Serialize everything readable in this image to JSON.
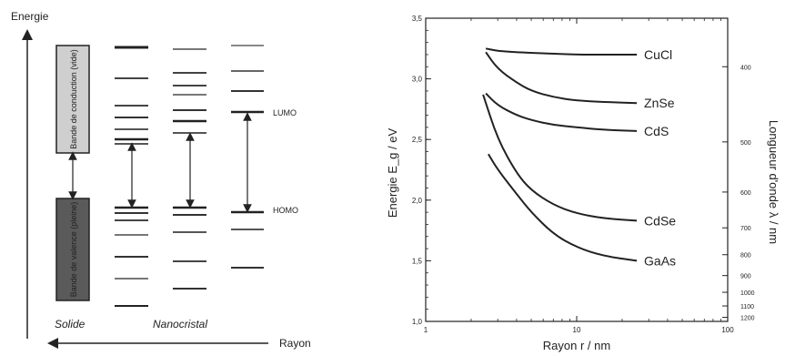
{
  "left_diagram": {
    "y_axis_label": "Energie",
    "x_axis_label": "Rayon",
    "conduction_band_label": "Bande de conduction (vide)",
    "valence_band_label": "Bande de valence (pleine)",
    "solid_label": "Solide",
    "nanocrystal_label": "Nanocristal",
    "lumo_label": "LUMO",
    "homo_label": "HOMO",
    "colors": {
      "conduction_band": "#cfcfcf",
      "valence_band": "#5a5a5a"
    }
  },
  "chart_data": {
    "type": "line",
    "xlabel": "Rayon r / nm",
    "ylabel": "Energie E_g / eV",
    "ylabel_right": "Longueur d'onde λ / nm",
    "x_scale": "log",
    "xlim": [
      1,
      100
    ],
    "ylim": [
      1.0,
      3.5
    ],
    "x_tick_labels": [
      "1",
      "10",
      "100"
    ],
    "y_tick_labels": [
      "1,0",
      "1,5",
      "2,0",
      "2,5",
      "3,0",
      "3,5"
    ],
    "right_tick_labels": [
      "400",
      "500",
      "600",
      "700",
      "800",
      "900",
      "1000",
      "1100",
      "1200"
    ],
    "series": [
      {
        "name": "CuCl",
        "x": [
          2.5,
          3,
          4,
          6,
          10,
          15,
          25
        ],
        "y": [
          3.25,
          3.23,
          3.22,
          3.21,
          3.2,
          3.2,
          3.2
        ]
      },
      {
        "name": "ZnSe",
        "x": [
          2.5,
          3,
          4,
          5,
          7,
          10,
          15,
          25
        ],
        "y": [
          3.22,
          3.08,
          2.97,
          2.9,
          2.85,
          2.82,
          2.81,
          2.8
        ]
      },
      {
        "name": "CdS",
        "x": [
          2.5,
          3,
          4,
          5,
          7,
          10,
          15,
          25
        ],
        "y": [
          2.88,
          2.78,
          2.7,
          2.66,
          2.62,
          2.6,
          2.58,
          2.57
        ]
      },
      {
        "name": "CdSe",
        "x": [
          2.4,
          3,
          4,
          5,
          7,
          10,
          15,
          25
        ],
        "y": [
          2.87,
          2.5,
          2.22,
          2.08,
          1.96,
          1.89,
          1.85,
          1.83
        ]
      },
      {
        "name": "GaAs",
        "x": [
          2.6,
          3,
          4,
          5,
          7,
          10,
          15,
          25
        ],
        "y": [
          2.38,
          2.25,
          2.05,
          1.9,
          1.72,
          1.61,
          1.54,
          1.5
        ]
      }
    ]
  }
}
